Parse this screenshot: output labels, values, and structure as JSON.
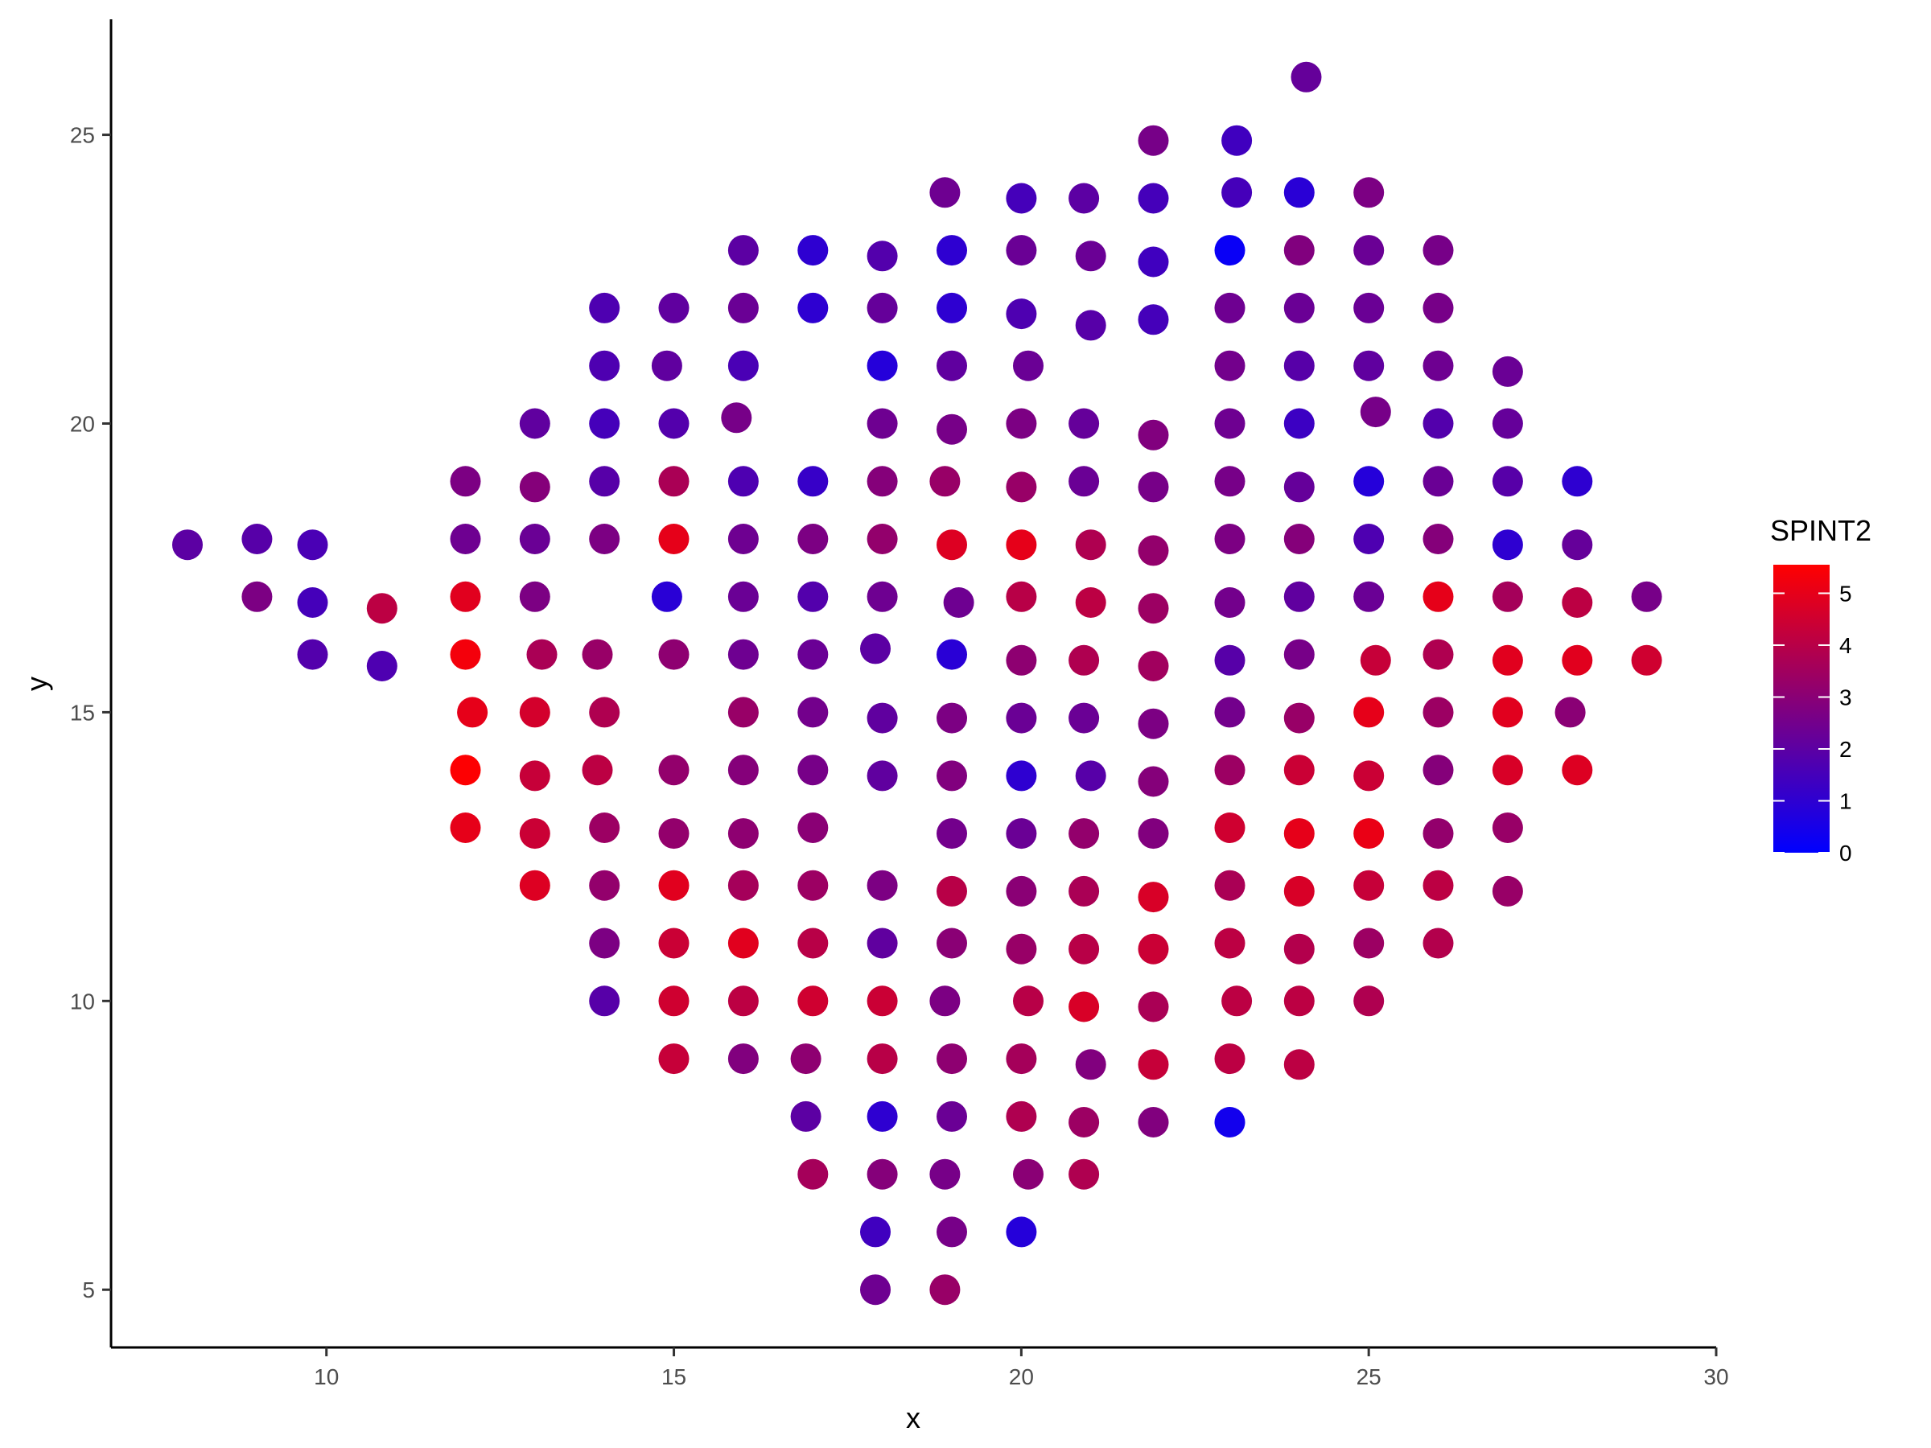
{
  "chart_data": {
    "type": "scatter",
    "title": "",
    "xlabel": "x",
    "ylabel": "y",
    "xlim": [
      6.9,
      30.0
    ],
    "ylim": [
      4.0,
      27.0
    ],
    "x_ticks": [
      10,
      15,
      20,
      25,
      30
    ],
    "y_ticks": [
      5,
      10,
      15,
      20,
      25
    ],
    "grid": false,
    "legend": {
      "title": "SPINT2",
      "type": "colorbar",
      "position": "right",
      "ticks": [
        0,
        1,
        2,
        3,
        4,
        5
      ],
      "range": [
        0,
        5.55
      ],
      "low_color": "#0000FF",
      "high_color": "#FF0000"
    },
    "points": [
      [
        24.1,
        26.0,
        2.2
      ],
      [
        21.9,
        24.9,
        2.6
      ],
      [
        23.1,
        24.9,
        1.4
      ],
      [
        18.9,
        24.0,
        2.4
      ],
      [
        20.0,
        23.9,
        1.5
      ],
      [
        20.9,
        23.9,
        2.0
      ],
      [
        21.9,
        23.9,
        1.5
      ],
      [
        23.1,
        24.0,
        1.5
      ],
      [
        24.0,
        24.0,
        0.9
      ],
      [
        25.0,
        24.0,
        2.7
      ],
      [
        16.0,
        23.0,
        2.0
      ],
      [
        17.0,
        23.0,
        1.0
      ],
      [
        18.0,
        22.9,
        1.8
      ],
      [
        19.0,
        23.0,
        1.0
      ],
      [
        20.0,
        23.0,
        2.3
      ],
      [
        21.0,
        22.9,
        2.3
      ],
      [
        21.9,
        22.8,
        1.4
      ],
      [
        23.0,
        23.0,
        0.2
      ],
      [
        24.0,
        23.0,
        2.8
      ],
      [
        25.0,
        23.0,
        2.3
      ],
      [
        26.0,
        23.0,
        2.6
      ],
      [
        14.0,
        22.0,
        1.7
      ],
      [
        15.0,
        22.0,
        2.1
      ],
      [
        16.0,
        22.0,
        2.3
      ],
      [
        17.0,
        22.0,
        1.0
      ],
      [
        18.0,
        22.0,
        2.2
      ],
      [
        19.0,
        22.0,
        1.0
      ],
      [
        20.0,
        21.9,
        1.7
      ],
      [
        21.0,
        21.7,
        1.9
      ],
      [
        21.9,
        21.8,
        1.5
      ],
      [
        23.0,
        22.0,
        2.4
      ],
      [
        24.0,
        22.0,
        2.3
      ],
      [
        25.0,
        22.0,
        2.3
      ],
      [
        26.0,
        22.0,
        2.6
      ],
      [
        14.0,
        21.0,
        1.7
      ],
      [
        14.9,
        21.0,
        2.1
      ],
      [
        16.0,
        21.0,
        1.6
      ],
      [
        18.0,
        21.0,
        0.8
      ],
      [
        19.0,
        21.0,
        2.1
      ],
      [
        20.1,
        21.0,
        2.3
      ],
      [
        23.0,
        21.0,
        2.5
      ],
      [
        24.0,
        21.0,
        1.9
      ],
      [
        25.0,
        21.0,
        2.1
      ],
      [
        26.0,
        21.0,
        2.4
      ],
      [
        27.0,
        20.9,
        2.3
      ],
      [
        13.0,
        20.0,
        2.1
      ],
      [
        14.0,
        20.0,
        1.5
      ],
      [
        15.0,
        20.0,
        1.8
      ],
      [
        15.9,
        20.1,
        2.6
      ],
      [
        18.0,
        20.0,
        2.4
      ],
      [
        19.0,
        19.9,
        2.6
      ],
      [
        20.0,
        20.0,
        2.7
      ],
      [
        20.9,
        20.0,
        2.2
      ],
      [
        21.9,
        19.8,
        2.8
      ],
      [
        23.0,
        20.0,
        2.4
      ],
      [
        24.0,
        20.0,
        1.3
      ],
      [
        25.1,
        20.2,
        2.6
      ],
      [
        26.0,
        20.0,
        1.8
      ],
      [
        27.0,
        20.0,
        2.2
      ],
      [
        12.0,
        19.0,
        2.7
      ],
      [
        13.0,
        18.9,
        2.9
      ],
      [
        14.0,
        19.0,
        1.9
      ],
      [
        15.0,
        19.0,
        3.7
      ],
      [
        16.0,
        19.0,
        1.7
      ],
      [
        17.0,
        19.0,
        1.2
      ],
      [
        18.0,
        19.0,
        2.9
      ],
      [
        18.9,
        19.0,
        3.3
      ],
      [
        20.0,
        18.9,
        3.3
      ],
      [
        20.9,
        19.0,
        2.3
      ],
      [
        21.9,
        18.9,
        2.6
      ],
      [
        23.0,
        19.0,
        2.6
      ],
      [
        24.0,
        18.9,
        2.2
      ],
      [
        25.0,
        19.0,
        0.8
      ],
      [
        26.0,
        19.0,
        2.3
      ],
      [
        27.0,
        19.0,
        1.9
      ],
      [
        28.0,
        19.0,
        1.0
      ],
      [
        8.0,
        17.9,
        2.0
      ],
      [
        9.0,
        18.0,
        1.9
      ],
      [
        9.8,
        17.9,
        1.6
      ],
      [
        12.0,
        18.0,
        2.4
      ],
      [
        13.0,
        18.0,
        2.3
      ],
      [
        14.0,
        18.0,
        2.7
      ],
      [
        15.0,
        18.0,
        5.0
      ],
      [
        16.0,
        18.0,
        2.4
      ],
      [
        17.0,
        18.0,
        2.7
      ],
      [
        18.0,
        18.0,
        3.2
      ],
      [
        19.0,
        17.9,
        4.8
      ],
      [
        20.0,
        17.9,
        5.0
      ],
      [
        21.0,
        17.9,
        3.8
      ],
      [
        21.9,
        17.8,
        3.2
      ],
      [
        23.0,
        18.0,
        2.7
      ],
      [
        24.0,
        18.0,
        2.9
      ],
      [
        25.0,
        18.0,
        1.7
      ],
      [
        26.0,
        18.0,
        2.9
      ],
      [
        27.0,
        17.9,
        1.0
      ],
      [
        28.0,
        17.9,
        2.2
      ],
      [
        9.0,
        17.0,
        2.7
      ],
      [
        9.8,
        16.9,
        1.5
      ],
      [
        10.8,
        16.8,
        4.1
      ],
      [
        12.0,
        17.0,
        4.9
      ],
      [
        13.0,
        17.0,
        2.7
      ],
      [
        14.9,
        17.0,
        0.9
      ],
      [
        16.0,
        17.0,
        2.3
      ],
      [
        17.0,
        17.0,
        1.8
      ],
      [
        18.0,
        17.0,
        2.4
      ],
      [
        19.1,
        16.9,
        2.4
      ],
      [
        20.0,
        17.0,
        4.0
      ],
      [
        21.0,
        16.9,
        4.1
      ],
      [
        21.9,
        16.8,
        3.4
      ],
      [
        23.0,
        16.9,
        2.5
      ],
      [
        24.0,
        17.0,
        2.1
      ],
      [
        25.0,
        17.0,
        2.3
      ],
      [
        26.0,
        17.0,
        5.0
      ],
      [
        27.0,
        17.0,
        3.6
      ],
      [
        28.0,
        16.9,
        4.1
      ],
      [
        29.0,
        17.0,
        2.6
      ],
      [
        9.8,
        16.0,
        1.8
      ],
      [
        10.8,
        15.8,
        1.7
      ],
      [
        12.0,
        16.0,
        5.3
      ],
      [
        13.1,
        16.0,
        3.7
      ],
      [
        13.9,
        16.0,
        3.3
      ],
      [
        15.0,
        16.0,
        3.1
      ],
      [
        16.0,
        16.0,
        2.4
      ],
      [
        17.0,
        16.0,
        2.3
      ],
      [
        17.9,
        16.1,
        2.0
      ],
      [
        19.0,
        16.0,
        0.9
      ],
      [
        20.0,
        15.9,
        3.1
      ],
      [
        20.9,
        15.9,
        3.8
      ],
      [
        21.9,
        15.8,
        3.5
      ],
      [
        23.0,
        15.9,
        1.9
      ],
      [
        24.0,
        16.0,
        2.6
      ],
      [
        25.1,
        15.9,
        4.3
      ],
      [
        26.0,
        16.0,
        3.8
      ],
      [
        27.0,
        15.9,
        4.9
      ],
      [
        28.0,
        15.9,
        4.9
      ],
      [
        29.0,
        15.9,
        4.5
      ],
      [
        12.1,
        15.0,
        5.0
      ],
      [
        13.0,
        15.0,
        4.6
      ],
      [
        14.0,
        15.0,
        3.8
      ],
      [
        16.0,
        15.0,
        3.3
      ],
      [
        17.0,
        15.0,
        2.5
      ],
      [
        18.0,
        14.9,
        2.1
      ],
      [
        19.0,
        14.9,
        2.7
      ],
      [
        20.0,
        14.9,
        2.3
      ],
      [
        20.9,
        14.9,
        2.3
      ],
      [
        21.9,
        14.8,
        2.7
      ],
      [
        23.0,
        15.0,
        2.5
      ],
      [
        24.0,
        14.9,
        3.3
      ],
      [
        25.0,
        15.0,
        5.0
      ],
      [
        26.0,
        15.0,
        3.4
      ],
      [
        27.0,
        15.0,
        4.9
      ],
      [
        27.9,
        15.0,
        3.0
      ],
      [
        12.0,
        14.0,
        5.5
      ],
      [
        13.0,
        13.9,
        4.3
      ],
      [
        13.9,
        14.0,
        4.1
      ],
      [
        15.0,
        14.0,
        3.2
      ],
      [
        16.0,
        14.0,
        2.9
      ],
      [
        17.0,
        14.0,
        2.6
      ],
      [
        18.0,
        13.9,
        2.1
      ],
      [
        19.0,
        13.9,
        2.8
      ],
      [
        20.0,
        13.9,
        1.0
      ],
      [
        21.0,
        13.9,
        1.9
      ],
      [
        21.9,
        13.8,
        2.9
      ],
      [
        23.0,
        14.0,
        3.4
      ],
      [
        24.0,
        14.0,
        4.4
      ],
      [
        25.0,
        13.9,
        4.4
      ],
      [
        26.0,
        14.0,
        2.9
      ],
      [
        27.0,
        14.0,
        4.7
      ],
      [
        28.0,
        14.0,
        4.8
      ],
      [
        12.0,
        13.0,
        5.0
      ],
      [
        13.0,
        12.9,
        4.4
      ],
      [
        14.0,
        13.0,
        3.4
      ],
      [
        15.0,
        12.9,
        3.2
      ],
      [
        16.0,
        12.9,
        3.1
      ],
      [
        17.0,
        13.0,
        3.0
      ],
      [
        19.0,
        12.9,
        2.5
      ],
      [
        20.0,
        12.9,
        2.3
      ],
      [
        20.9,
        12.9,
        3.2
      ],
      [
        21.9,
        12.9,
        2.8
      ],
      [
        23.0,
        13.0,
        4.5
      ],
      [
        24.0,
        12.9,
        5.0
      ],
      [
        25.0,
        12.9,
        5.1
      ],
      [
        26.0,
        12.9,
        3.2
      ],
      [
        27.0,
        13.0,
        3.3
      ],
      [
        13.0,
        12.0,
        4.8
      ],
      [
        14.0,
        12.0,
        3.2
      ],
      [
        15.0,
        12.0,
        4.9
      ],
      [
        16.0,
        12.0,
        3.6
      ],
      [
        17.0,
        12.0,
        3.4
      ],
      [
        18.0,
        12.0,
        2.7
      ],
      [
        19.0,
        11.9,
        4.0
      ],
      [
        20.0,
        11.9,
        3.0
      ],
      [
        20.9,
        11.9,
        3.7
      ],
      [
        21.9,
        11.8,
        4.7
      ],
      [
        23.0,
        12.0,
        3.7
      ],
      [
        24.0,
        11.9,
        4.7
      ],
      [
        25.0,
        12.0,
        4.3
      ],
      [
        26.0,
        12.0,
        4.1
      ],
      [
        27.0,
        11.9,
        3.3
      ],
      [
        14.0,
        11.0,
        2.7
      ],
      [
        15.0,
        11.0,
        4.4
      ],
      [
        16.0,
        11.0,
        4.9
      ],
      [
        17.0,
        11.0,
        4.0
      ],
      [
        18.0,
        11.0,
        2.1
      ],
      [
        19.0,
        11.0,
        3.0
      ],
      [
        20.0,
        10.9,
        3.3
      ],
      [
        20.9,
        10.9,
        4.0
      ],
      [
        21.9,
        10.9,
        4.4
      ],
      [
        23.0,
        11.0,
        4.1
      ],
      [
        24.0,
        10.9,
        3.9
      ],
      [
        25.0,
        11.0,
        3.4
      ],
      [
        26.0,
        11.0,
        3.9
      ],
      [
        14.0,
        10.0,
        1.9
      ],
      [
        15.0,
        10.0,
        4.5
      ],
      [
        16.0,
        10.0,
        4.1
      ],
      [
        17.0,
        10.0,
        4.5
      ],
      [
        18.0,
        10.0,
        4.4
      ],
      [
        18.9,
        10.0,
        2.7
      ],
      [
        20.1,
        10.0,
        4.0
      ],
      [
        20.9,
        9.9,
        4.7
      ],
      [
        21.9,
        9.9,
        3.7
      ],
      [
        23.1,
        10.0,
        4.1
      ],
      [
        24.0,
        10.0,
        4.1
      ],
      [
        25.0,
        10.0,
        3.8
      ],
      [
        15.0,
        9.0,
        4.3
      ],
      [
        16.0,
        9.0,
        2.8
      ],
      [
        16.9,
        9.0,
        3.1
      ],
      [
        18.0,
        9.0,
        4.0
      ],
      [
        19.0,
        9.0,
        3.1
      ],
      [
        20.0,
        9.0,
        3.6
      ],
      [
        21.0,
        8.9,
        2.8
      ],
      [
        21.9,
        8.9,
        4.3
      ],
      [
        23.0,
        9.0,
        4.1
      ],
      [
        24.0,
        8.9,
        4.1
      ],
      [
        16.9,
        8.0,
        2.0
      ],
      [
        18.0,
        8.0,
        1.0
      ],
      [
        19.0,
        8.0,
        2.3
      ],
      [
        20.0,
        8.0,
        3.8
      ],
      [
        20.9,
        7.9,
        3.4
      ],
      [
        21.9,
        7.9,
        2.8
      ],
      [
        23.0,
        7.9,
        0.4
      ],
      [
        17.0,
        7.0,
        3.6
      ],
      [
        18.0,
        7.0,
        2.9
      ],
      [
        18.9,
        7.0,
        2.6
      ],
      [
        20.1,
        7.0,
        3.0
      ],
      [
        20.9,
        7.0,
        3.8
      ],
      [
        17.9,
        6.0,
        1.4
      ],
      [
        19.0,
        6.0,
        2.6
      ],
      [
        20.0,
        6.0,
        0.8
      ],
      [
        17.9,
        5.0,
        2.4
      ],
      [
        18.9,
        5.0,
        3.3
      ]
    ]
  }
}
